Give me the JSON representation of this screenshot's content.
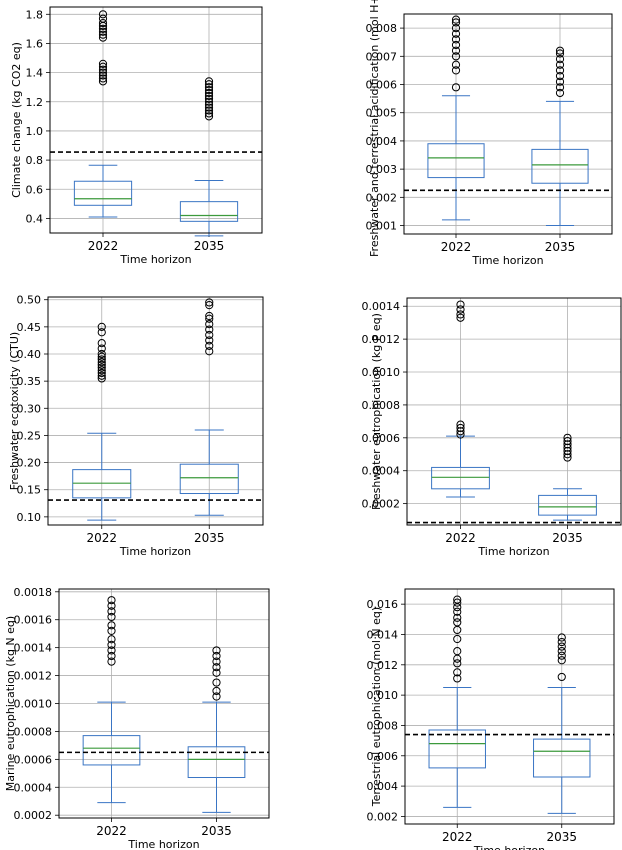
{
  "chart_data": [
    {
      "type": "box",
      "title": "",
      "xlabel": "Time horizon",
      "ylabel": "Climate change (kg CO2 eq)",
      "categories": [
        "2022",
        "2035"
      ],
      "ylim": [
        0.3,
        1.85
      ],
      "yticks": [
        0.4,
        0.6,
        0.8,
        1.0,
        1.2,
        1.4,
        1.6,
        1.8
      ],
      "ytick_labels": [
        "0.4",
        "0.6",
        "0.8",
        "1.0",
        "1.2",
        "1.4",
        "1.6",
        "1.8"
      ],
      "grid": true,
      "reference_line": 0.855,
      "boxes": [
        {
          "whislo": 0.41,
          "q1": 0.49,
          "med": 0.535,
          "q3": 0.655,
          "whishi": 0.765,
          "fliers": [
            1.34,
            1.36,
            1.38,
            1.4,
            1.42,
            1.44,
            1.46,
            1.64,
            1.66,
            1.68,
            1.7,
            1.72,
            1.74,
            1.77,
            1.8
          ]
        },
        {
          "whislo": 0.28,
          "q1": 0.38,
          "med": 0.42,
          "q3": 0.515,
          "whishi": 0.66,
          "fliers": [
            1.1,
            1.12,
            1.14,
            1.16,
            1.18,
            1.2,
            1.22,
            1.24,
            1.26,
            1.28,
            1.3,
            1.32,
            1.34
          ]
        }
      ]
    },
    {
      "type": "box",
      "title": "",
      "xlabel": "Time horizon",
      "ylabel": "Freshwater and terrestrial acidification (mol H+)",
      "categories": [
        "2022",
        "2035"
      ],
      "ylim": [
        0.0007,
        0.0085
      ],
      "yticks": [
        0.001,
        0.002,
        0.003,
        0.004,
        0.005,
        0.006,
        0.007,
        0.008
      ],
      "ytick_labels": [
        "0.001",
        "0.002",
        "0.003",
        "0.004",
        "0.005",
        "0.006",
        "0.007",
        "0.008"
      ],
      "grid": true,
      "reference_line": 0.00225,
      "boxes": [
        {
          "whislo": 0.0012,
          "q1": 0.0027,
          "med": 0.0034,
          "q3": 0.0039,
          "whishi": 0.0056,
          "fliers": [
            0.0059,
            0.0065,
            0.0067,
            0.007,
            0.0072,
            0.0074,
            0.0076,
            0.0078,
            0.008,
            0.0082,
            0.0083
          ]
        },
        {
          "whislo": 0.001,
          "q1": 0.0025,
          "med": 0.00315,
          "q3": 0.0037,
          "whishi": 0.0054,
          "fliers": [
            0.0057,
            0.0059,
            0.0061,
            0.0063,
            0.0065,
            0.0067,
            0.0069,
            0.0071,
            0.0072
          ]
        }
      ]
    },
    {
      "type": "box",
      "title": "",
      "xlabel": "Time horizon",
      "ylabel": "Freshwater ecotoxicity (CTU)",
      "categories": [
        "2022",
        "2035"
      ],
      "ylim": [
        0.085,
        0.505
      ],
      "yticks": [
        0.1,
        0.15,
        0.2,
        0.25,
        0.3,
        0.35,
        0.4,
        0.45,
        0.5
      ],
      "ytick_labels": [
        "0.10",
        "0.15",
        "0.20",
        "0.25",
        "0.30",
        "0.35",
        "0.40",
        "0.45",
        "0.50"
      ],
      "grid": true,
      "reference_line": 0.131,
      "boxes": [
        {
          "whislo": 0.094,
          "q1": 0.135,
          "med": 0.162,
          "q3": 0.187,
          "whishi": 0.254,
          "fliers": [
            0.355,
            0.36,
            0.365,
            0.37,
            0.375,
            0.38,
            0.385,
            0.39,
            0.395,
            0.4,
            0.41,
            0.42,
            0.44,
            0.45
          ]
        },
        {
          "whislo": 0.103,
          "q1": 0.143,
          "med": 0.172,
          "q3": 0.197,
          "whishi": 0.26,
          "fliers": [
            0.405,
            0.415,
            0.425,
            0.435,
            0.445,
            0.455,
            0.465,
            0.47,
            0.49,
            0.495
          ]
        }
      ]
    },
    {
      "type": "box",
      "title": "",
      "xlabel": "Time horizon",
      "ylabel": "Freshwater eutrophication (kg P eq)",
      "categories": [
        "2022",
        "2035"
      ],
      "ylim": [
        7e-05,
        0.00145
      ],
      "yticks": [
        0.0002,
        0.0004,
        0.0006,
        0.0008,
        0.001,
        0.0012,
        0.0014
      ],
      "ytick_labels": [
        "0.0002",
        "0.0004",
        "0.0006",
        "0.0008",
        "0.0010",
        "0.0012",
        "0.0014"
      ],
      "grid": true,
      "reference_line": 8.5e-05,
      "boxes": [
        {
          "whislo": 0.00024,
          "q1": 0.00029,
          "med": 0.00036,
          "q3": 0.00042,
          "whishi": 0.00061,
          "fliers": [
            0.00062,
            0.00064,
            0.00066,
            0.00068,
            0.00133,
            0.00135,
            0.00138,
            0.00141
          ]
        },
        {
          "whislo": 0.0001,
          "q1": 0.00013,
          "med": 0.00018,
          "q3": 0.00025,
          "whishi": 0.00029,
          "fliers": [
            0.00048,
            0.0005,
            0.00052,
            0.00054,
            0.00056,
            0.00058,
            0.0006
          ]
        }
      ]
    },
    {
      "type": "box",
      "title": "",
      "xlabel": "Time horizon",
      "ylabel": "Marine eutrophication (kg N eq)",
      "categories": [
        "2022",
        "2035"
      ],
      "ylim": [
        0.00018,
        0.00182
      ],
      "yticks": [
        0.0002,
        0.0004,
        0.0006,
        0.0008,
        0.001,
        0.0012,
        0.0014,
        0.0016,
        0.0018
      ],
      "ytick_labels": [
        "0.0002",
        "0.0004",
        "0.0006",
        "0.0008",
        "0.0010",
        "0.0012",
        "0.0014",
        "0.0016",
        "0.0018"
      ],
      "grid": true,
      "reference_line": 0.00065,
      "boxes": [
        {
          "whislo": 0.00029,
          "q1": 0.00056,
          "med": 0.00068,
          "q3": 0.00077,
          "whishi": 0.00101,
          "fliers": [
            0.0013,
            0.00134,
            0.00138,
            0.00142,
            0.00146,
            0.00152,
            0.00156,
            0.00162,
            0.00166,
            0.0017,
            0.00174
          ]
        },
        {
          "whislo": 0.00022,
          "q1": 0.00047,
          "med": 0.0006,
          "q3": 0.00069,
          "whishi": 0.00101,
          "fliers": [
            0.00105,
            0.00109,
            0.00115,
            0.00122,
            0.00126,
            0.0013,
            0.00134,
            0.00138
          ]
        }
      ]
    },
    {
      "type": "box",
      "title": "",
      "xlabel": "Time horizon",
      "ylabel": "Terrestrial eutrophication (mol N eq)",
      "categories": [
        "2022",
        "2035"
      ],
      "ylim": [
        0.0015,
        0.017
      ],
      "yticks": [
        0.002,
        0.004,
        0.006,
        0.008,
        0.01,
        0.012,
        0.014,
        0.016
      ],
      "ytick_labels": [
        "0.002",
        "0.004",
        "0.006",
        "0.008",
        "0.010",
        "0.012",
        "0.014",
        "0.016"
      ],
      "grid": true,
      "reference_line": 0.0074,
      "boxes": [
        {
          "whislo": 0.0026,
          "q1": 0.0052,
          "med": 0.0068,
          "q3": 0.0077,
          "whishi": 0.0105,
          "fliers": [
            0.0111,
            0.0115,
            0.0121,
            0.0124,
            0.0129,
            0.0137,
            0.0143,
            0.0148,
            0.0151,
            0.0155,
            0.0158,
            0.0161,
            0.0163
          ]
        },
        {
          "whislo": 0.0022,
          "q1": 0.0046,
          "med": 0.0063,
          "q3": 0.0071,
          "whishi": 0.0105,
          "fliers": [
            0.0112,
            0.0123,
            0.0126,
            0.0129,
            0.0132,
            0.0135,
            0.0138
          ]
        }
      ]
    }
  ],
  "colors": {
    "box": "#3a75c4",
    "median": "#3c9a3c",
    "reference_line": "#000000",
    "grid": "#b0b0b0",
    "flier": "#000000"
  }
}
